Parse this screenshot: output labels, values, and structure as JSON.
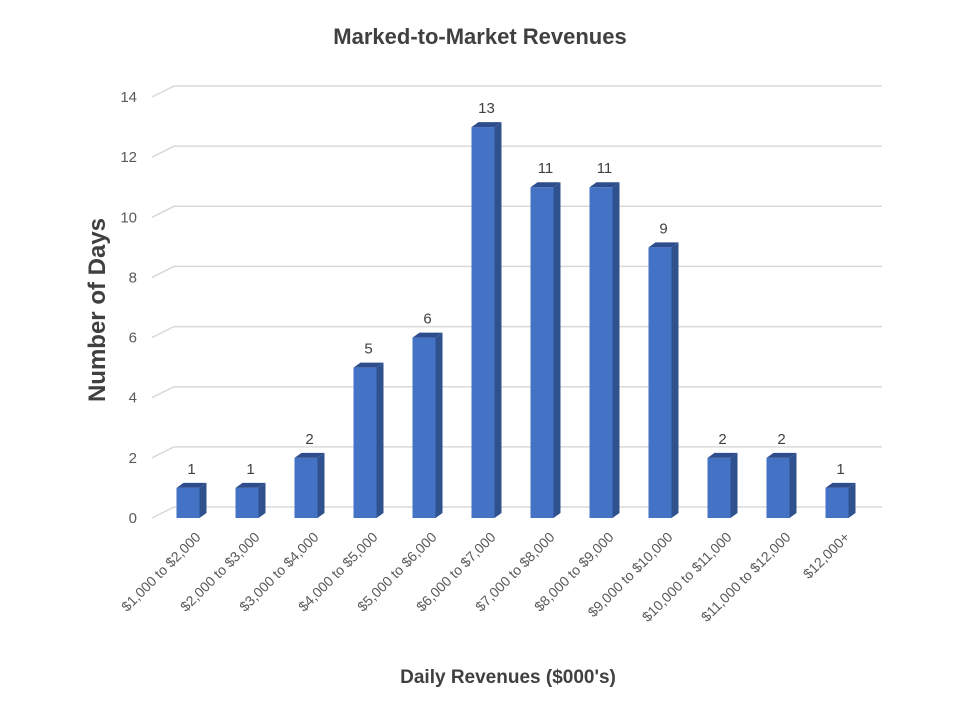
{
  "chart_data": {
    "type": "bar",
    "title": "Marked-to-Market Revenues",
    "xlabel": "Daily Revenues ($000's)",
    "ylabel": "Number of Days",
    "categories": [
      "$1,000 to $2,000",
      "$2,000 to $3,000",
      "$3,000 to $4,000",
      "$4,000 to $5,000",
      "$5,000 to $6,000",
      "$6,000 to $7,000",
      "$7,000 to $8,000",
      "$8,000 to $9,000",
      "$9,000 to $10,000",
      "$10,000 to $11,000",
      "$11,000 to $12,000",
      "$12,000+"
    ],
    "values": [
      1,
      1,
      2,
      5,
      6,
      13,
      11,
      11,
      9,
      2,
      2,
      1
    ],
    "ylim": [
      0,
      14
    ],
    "yticks": [
      0,
      2,
      4,
      6,
      8,
      10,
      12,
      14
    ],
    "grid": true,
    "data_labels": true,
    "colors": {
      "bar_front": "#4472C4",
      "bar_side": "#2F528F",
      "bar_top": "#2E4D8C",
      "grid": "#D9D9D9"
    }
  }
}
